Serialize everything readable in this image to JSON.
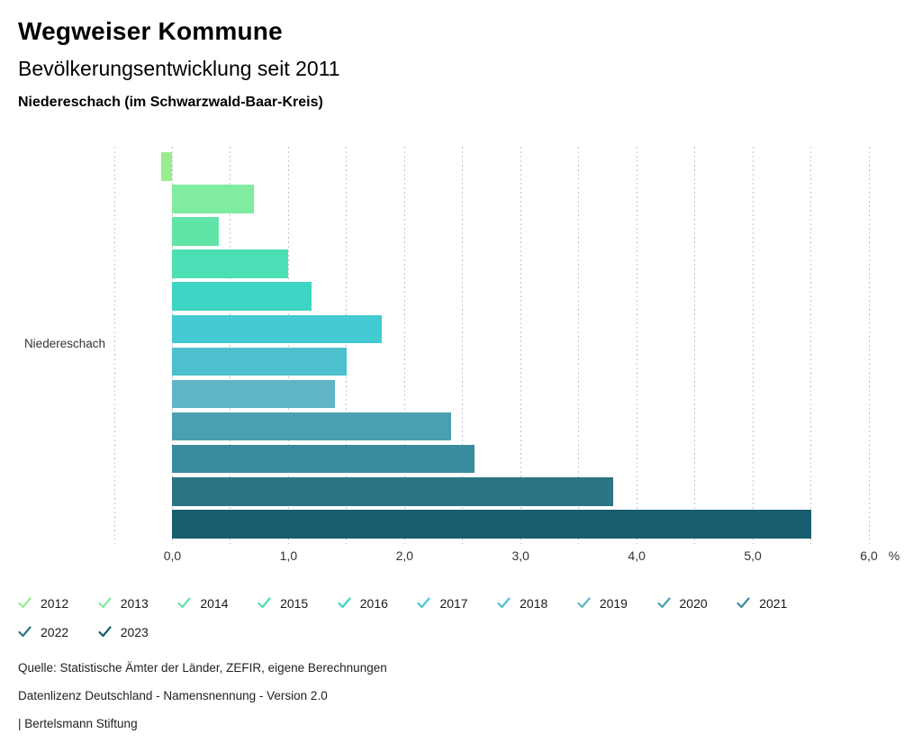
{
  "header": {
    "title": "Wegweiser Kommune",
    "subtitle": "Bevölkerungsentwicklung seit 2011",
    "region_line": "Niedereschach (im Schwarzwald-Baar-Kreis)"
  },
  "chart_data": {
    "type": "bar",
    "orientation": "horizontal",
    "title": "Bevölkerungsentwicklung seit 2011",
    "category_label": "Niedereschach",
    "xlabel": "%",
    "xlim": [
      -0.5,
      6.0
    ],
    "grid": true,
    "grid_step": 0.5,
    "legend_position": "bottom",
    "x_ticks": [
      {
        "value": 0,
        "label": "0,0"
      },
      {
        "value": 1,
        "label": "1,0"
      },
      {
        "value": 2,
        "label": "2,0"
      },
      {
        "value": 3,
        "label": "3,0"
      },
      {
        "value": 4,
        "label": "4,0"
      },
      {
        "value": 5,
        "label": "5,0"
      },
      {
        "value": 6,
        "label": "6,0"
      }
    ],
    "series": [
      {
        "year": "2012",
        "value": -0.1,
        "color": "#99ED8F"
      },
      {
        "year": "2013",
        "value": 0.7,
        "color": "#7FEC9F"
      },
      {
        "year": "2014",
        "value": 0.4,
        "color": "#61E4A8"
      },
      {
        "year": "2015",
        "value": 1.0,
        "color": "#4CDEB4"
      },
      {
        "year": "2016",
        "value": 1.2,
        "color": "#3DD5C3"
      },
      {
        "year": "2017",
        "value": 1.8,
        "color": "#43CAD2"
      },
      {
        "year": "2018",
        "value": 1.5,
        "color": "#4CC0CD"
      },
      {
        "year": "2019",
        "value": 1.4,
        "color": "#5FB4C6"
      },
      {
        "year": "2020",
        "value": 2.4,
        "color": "#49A0B0"
      },
      {
        "year": "2021",
        "value": 2.6,
        "color": "#3A8B9E"
      },
      {
        "year": "2022",
        "value": 3.8,
        "color": "#2B7585"
      },
      {
        "year": "2023",
        "value": 5.5,
        "color": "#185D6D"
      }
    ]
  },
  "footer": {
    "lines": [
      "Quelle: Statistische Ämter der Länder, ZEFIR, eigene Berechnungen",
      "Datenlizenz Deutschland - Namensnennung - Version 2.0",
      "| Bertelsmann Stiftung"
    ]
  }
}
